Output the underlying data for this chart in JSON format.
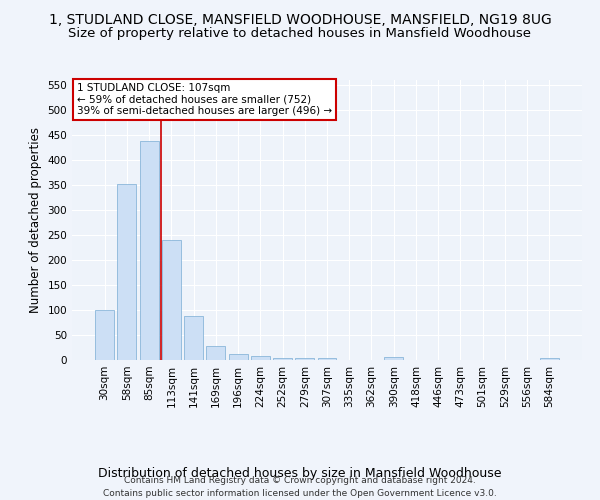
{
  "title": "1, STUDLAND CLOSE, MANSFIELD WOODHOUSE, MANSFIELD, NG19 8UG",
  "subtitle": "Size of property relative to detached houses in Mansfield Woodhouse",
  "xlabel": "Distribution of detached houses by size in Mansfield Woodhouse",
  "ylabel": "Number of detached properties",
  "footer_line1": "Contains HM Land Registry data © Crown copyright and database right 2024.",
  "footer_line2": "Contains public sector information licensed under the Open Government Licence v3.0.",
  "annotation_line1": "1 STUDLAND CLOSE: 107sqm",
  "annotation_line2": "← 59% of detached houses are smaller (752)",
  "annotation_line3": "39% of semi-detached houses are larger (496) →",
  "bar_color": "#ccdff5",
  "bar_edge_color": "#7aadd4",
  "vline_color": "#cc0000",
  "vline_x": 2.55,
  "categories": [
    "30sqm",
    "58sqm",
    "85sqm",
    "113sqm",
    "141sqm",
    "169sqm",
    "196sqm",
    "224sqm",
    "252sqm",
    "279sqm",
    "307sqm",
    "335sqm",
    "362sqm",
    "390sqm",
    "418sqm",
    "446sqm",
    "473sqm",
    "501sqm",
    "529sqm",
    "556sqm",
    "584sqm"
  ],
  "values": [
    100,
    353,
    438,
    240,
    88,
    28,
    13,
    9,
    5,
    5,
    5,
    0,
    0,
    6,
    0,
    0,
    0,
    0,
    0,
    0,
    5
  ],
  "ylim": [
    0,
    560
  ],
  "yticks": [
    0,
    50,
    100,
    150,
    200,
    250,
    300,
    350,
    400,
    450,
    500,
    550
  ],
  "bg_color": "#f0f4fb",
  "plot_bg": "#eef3fa",
  "grid_color": "#ffffff",
  "annotation_box_bg": "#ffffff",
  "annotation_box_edge": "#cc0000",
  "title_fontsize": 10,
  "subtitle_fontsize": 9.5,
  "xlabel_fontsize": 9,
  "ylabel_fontsize": 8.5,
  "tick_fontsize": 7.5,
  "annotation_fontsize": 7.5,
  "footer_fontsize": 6.5,
  "figsize": [
    6.0,
    5.0
  ],
  "dpi": 100
}
